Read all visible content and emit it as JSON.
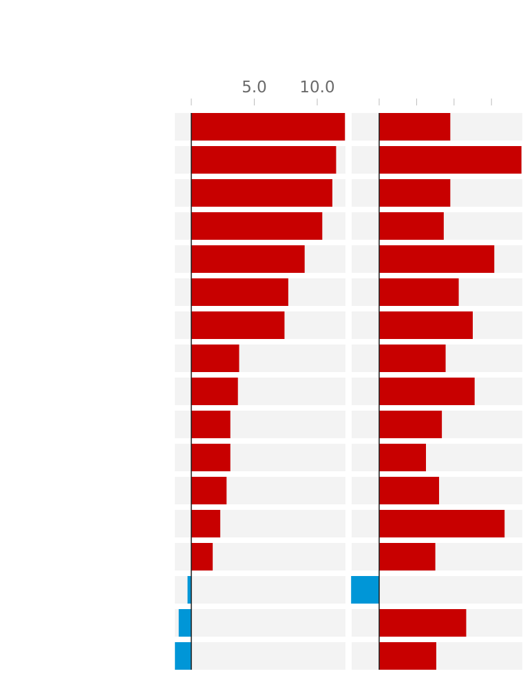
{
  "colors": {
    "positive": "#c80000",
    "negative": "#0096d7",
    "track": "#f3f3f3",
    "axis": "#1a1a1a",
    "tick": "#bbbbbb",
    "tick_label": "#6a6a6a"
  },
  "chart_data": [
    {
      "type": "bar",
      "orientation": "horizontal",
      "domain": [
        -1.3,
        12.2
      ],
      "ticks": [
        0,
        5,
        10
      ],
      "tick_labels": [
        "",
        "5.0",
        "10.0"
      ],
      "values": [
        12.2,
        11.5,
        11.2,
        10.4,
        9.0,
        7.7,
        7.4,
        3.8,
        3.7,
        3.1,
        3.1,
        2.8,
        2.3,
        1.7,
        -0.3,
        -1.0,
        -1.3
      ]
    },
    {
      "type": "bar",
      "orientation": "horizontal",
      "domain": [
        -1.5,
        7.6
      ],
      "ticks": [
        0,
        2,
        4,
        6
      ],
      "tick_labels": [
        "",
        "",
        "",
        ""
      ],
      "values": [
        3.8,
        7.6,
        3.8,
        3.45,
        6.15,
        4.25,
        5.0,
        3.55,
        5.1,
        3.35,
        2.5,
        3.2,
        6.7,
        3.0,
        -1.5,
        4.65,
        3.05
      ]
    }
  ]
}
